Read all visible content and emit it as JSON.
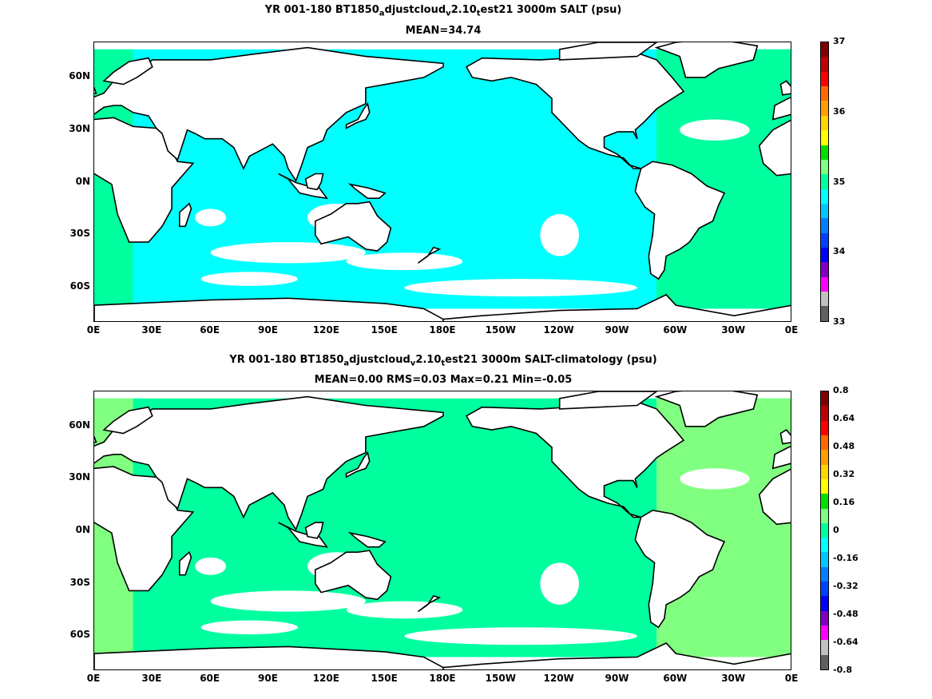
{
  "panels": [
    {
      "title_parts": [
        "YR 001-180 BT1850",
        "a",
        "djustcloud",
        "v",
        "2.10",
        "t",
        "est21 3000m SALT (psu)"
      ],
      "subtitle": "MEAN=34.74",
      "colorbar": {
        "labels": [
          "37",
          "36",
          "35",
          "34",
          "33"
        ],
        "colors": [
          "#800000",
          "#c00000",
          "#ff0000",
          "#ff6a00",
          "#ff9f00",
          "#ffd400",
          "#ffff00",
          "#00e000",
          "#80ff80",
          "#00ff9f",
          "#00ffff",
          "#00c8ff",
          "#0080ff",
          "#0040ff",
          "#0000ff",
          "#7f00c0",
          "#ff00ff",
          "#c0c0c0",
          "#606060"
        ]
      },
      "fill_color": "#00ffff",
      "atlantic_color": "#00ff9f"
    },
    {
      "title_parts": [
        "YR 001-180 BT1850",
        "a",
        "djustcloud",
        "v",
        "2.10",
        "t",
        "est21 3000m SALT-climatology (psu)"
      ],
      "subtitle": "MEAN=0.00   RMS=0.03   Max=0.21   Min=-0.05",
      "colorbar": {
        "labels": [
          "0.8",
          "0.64",
          "0.48",
          "0.32",
          "0.16",
          "0",
          "-0.16",
          "-0.32",
          "-0.48",
          "-0.64",
          "-0.8"
        ],
        "colors": [
          "#800000",
          "#c00000",
          "#ff0000",
          "#ff6a00",
          "#ff9f00",
          "#ffd400",
          "#ffff00",
          "#00e000",
          "#80ff80",
          "#00ff9f",
          "#00ffff",
          "#00c8ff",
          "#0080ff",
          "#0040ff",
          "#0000ff",
          "#7f00c0",
          "#ff00ff",
          "#c0c0c0",
          "#606060"
        ]
      },
      "fill_color": "#00ff9f",
      "atlantic_color": "#80ff80"
    }
  ],
  "axes": {
    "x_ticks": [
      "0E",
      "30E",
      "60E",
      "90E",
      "120E",
      "150E",
      "180E",
      "150W",
      "120W",
      "90W",
      "60W",
      "30W",
      "0E"
    ],
    "y_ticks": [
      "60N",
      "30N",
      "0N",
      "30S",
      "60S"
    ]
  }
}
